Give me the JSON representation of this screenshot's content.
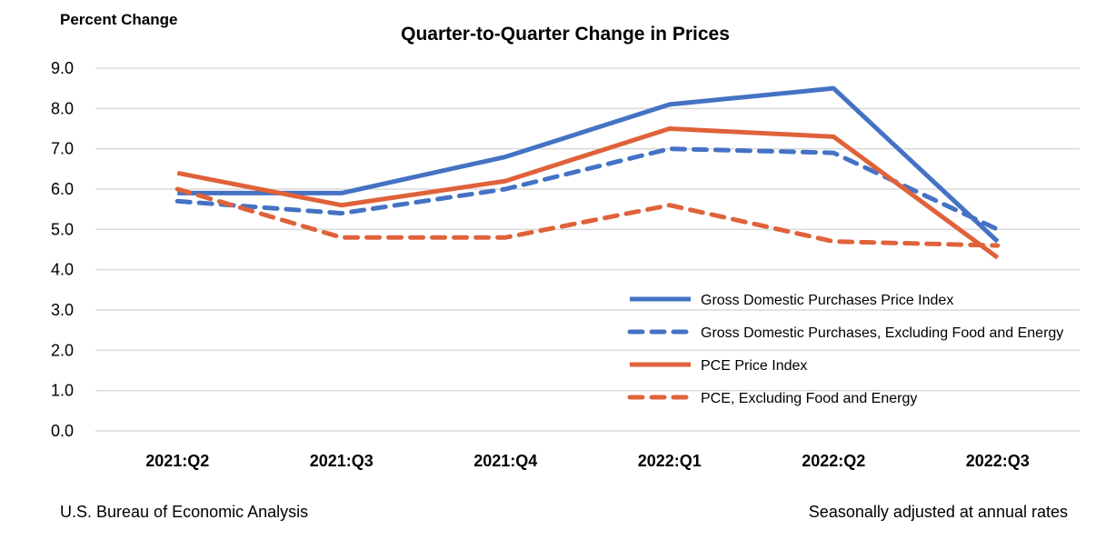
{
  "chart_data": {
    "type": "line",
    "title": "Quarter-to-Quarter Change in Prices",
    "ylabel": "Percent Change",
    "xlabel": "",
    "categories": [
      "2021:Q2",
      "2021:Q3",
      "2021:Q4",
      "2022:Q1",
      "2022:Q2",
      "2022:Q3"
    ],
    "ylim": [
      0,
      9
    ],
    "yticks": [
      "0.0",
      "1.0",
      "2.0",
      "3.0",
      "4.0",
      "5.0",
      "6.0",
      "7.0",
      "8.0",
      "9.0"
    ],
    "grid": true,
    "legend_position": "bottom-right inside",
    "series": [
      {
        "name": "Gross Domestic Purchases Price Index",
        "color": "#4472C4",
        "style": "solid",
        "values": [
          5.9,
          5.9,
          6.8,
          8.1,
          8.5,
          4.7
        ]
      },
      {
        "name": "Gross Domestic Purchases, Excluding Food and Energy",
        "color": "#4472C4",
        "style": "dashed",
        "values": [
          5.7,
          5.4,
          6.0,
          7.0,
          6.9,
          5.0
        ]
      },
      {
        "name": "PCE Price Index",
        "color": "#E0623A",
        "style": "solid",
        "values": [
          6.4,
          5.6,
          6.2,
          7.5,
          7.3,
          4.3
        ]
      },
      {
        "name": "PCE, Excluding Food and Energy",
        "color": "#E0623A",
        "style": "dashed",
        "values": [
          6.0,
          4.8,
          4.8,
          5.6,
          4.7,
          4.6
        ]
      }
    ]
  },
  "footer": {
    "source": "U.S. Bureau of Economic Analysis",
    "note": "Seasonally adjusted at annual rates"
  }
}
